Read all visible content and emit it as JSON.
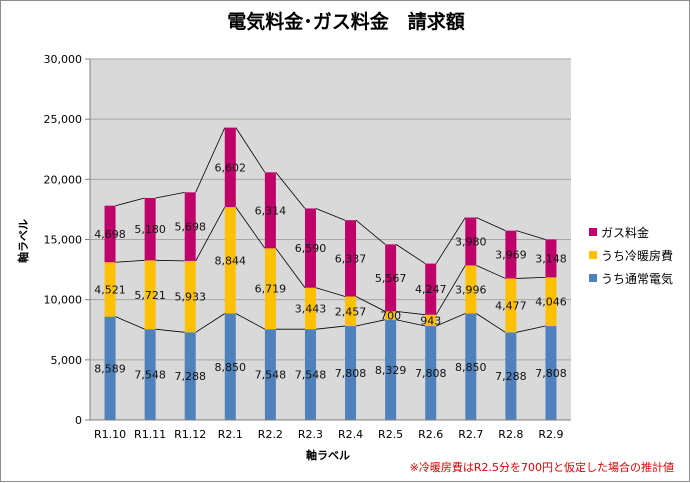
{
  "chart_data": {
    "type": "bar",
    "stacked": true,
    "title": "電気料金･ガス料金　請求額",
    "xlabel": "軸ラベル",
    "ylabel": "軸ラベル",
    "ylim": [
      0,
      30000
    ],
    "yticks": [
      0,
      5000,
      10000,
      15000,
      20000,
      25000,
      30000
    ],
    "ytick_labels": [
      "0",
      "5,000",
      "10,000",
      "15,000",
      "20,000",
      "25,000",
      "30,000"
    ],
    "grid": true,
    "legend_position": "right",
    "categories": [
      "R1.10",
      "R1.11",
      "R1.12",
      "R2.1",
      "R2.2",
      "R2.3",
      "R2.4",
      "R2.5",
      "R2.6",
      "R2.7",
      "R2.8",
      "R2.9"
    ],
    "series": [
      {
        "name": "うち通常電気",
        "color": "#4f81bd",
        "values": [
          8589,
          7548,
          7288,
          8850,
          7548,
          7548,
          7808,
          8329,
          7808,
          8850,
          7288,
          7808
        ],
        "labels": [
          "8,589",
          "7,548",
          "7,288",
          "8,850",
          "7,548",
          "7,548",
          "7,808",
          "8,329",
          "7,808",
          "8,850",
          "7,288",
          "7,808"
        ]
      },
      {
        "name": "うち冷暖房費",
        "color": "#ffc000",
        "values": [
          4521,
          5721,
          5933,
          8844,
          6719,
          3443,
          2457,
          700,
          943,
          3996,
          4477,
          4046
        ],
        "labels": [
          "4,521",
          "5,721",
          "5,933",
          "8,844",
          "6,719",
          "3,443",
          "2,457",
          "700",
          "943",
          "3,996",
          "4,477",
          "4,046"
        ]
      },
      {
        "name": "ガス料金",
        "color": "#c0006a",
        "values": [
          4698,
          5180,
          5698,
          6602,
          6314,
          6590,
          6337,
          5567,
          4247,
          3980,
          3969,
          3148
        ],
        "labels": [
          "4,698",
          "5,180",
          "5,698",
          "6,602",
          "6,314",
          "6,590",
          "6,337",
          "5,567",
          "4,247",
          "3,980",
          "3,969",
          "3,148"
        ]
      }
    ],
    "legend_order": [
      "ガス料金",
      "うち冷暖房費",
      "うち通常電気"
    ],
    "annotation": "※冷暖房費はR2.5分を700円と仮定した場合の推計値"
  }
}
